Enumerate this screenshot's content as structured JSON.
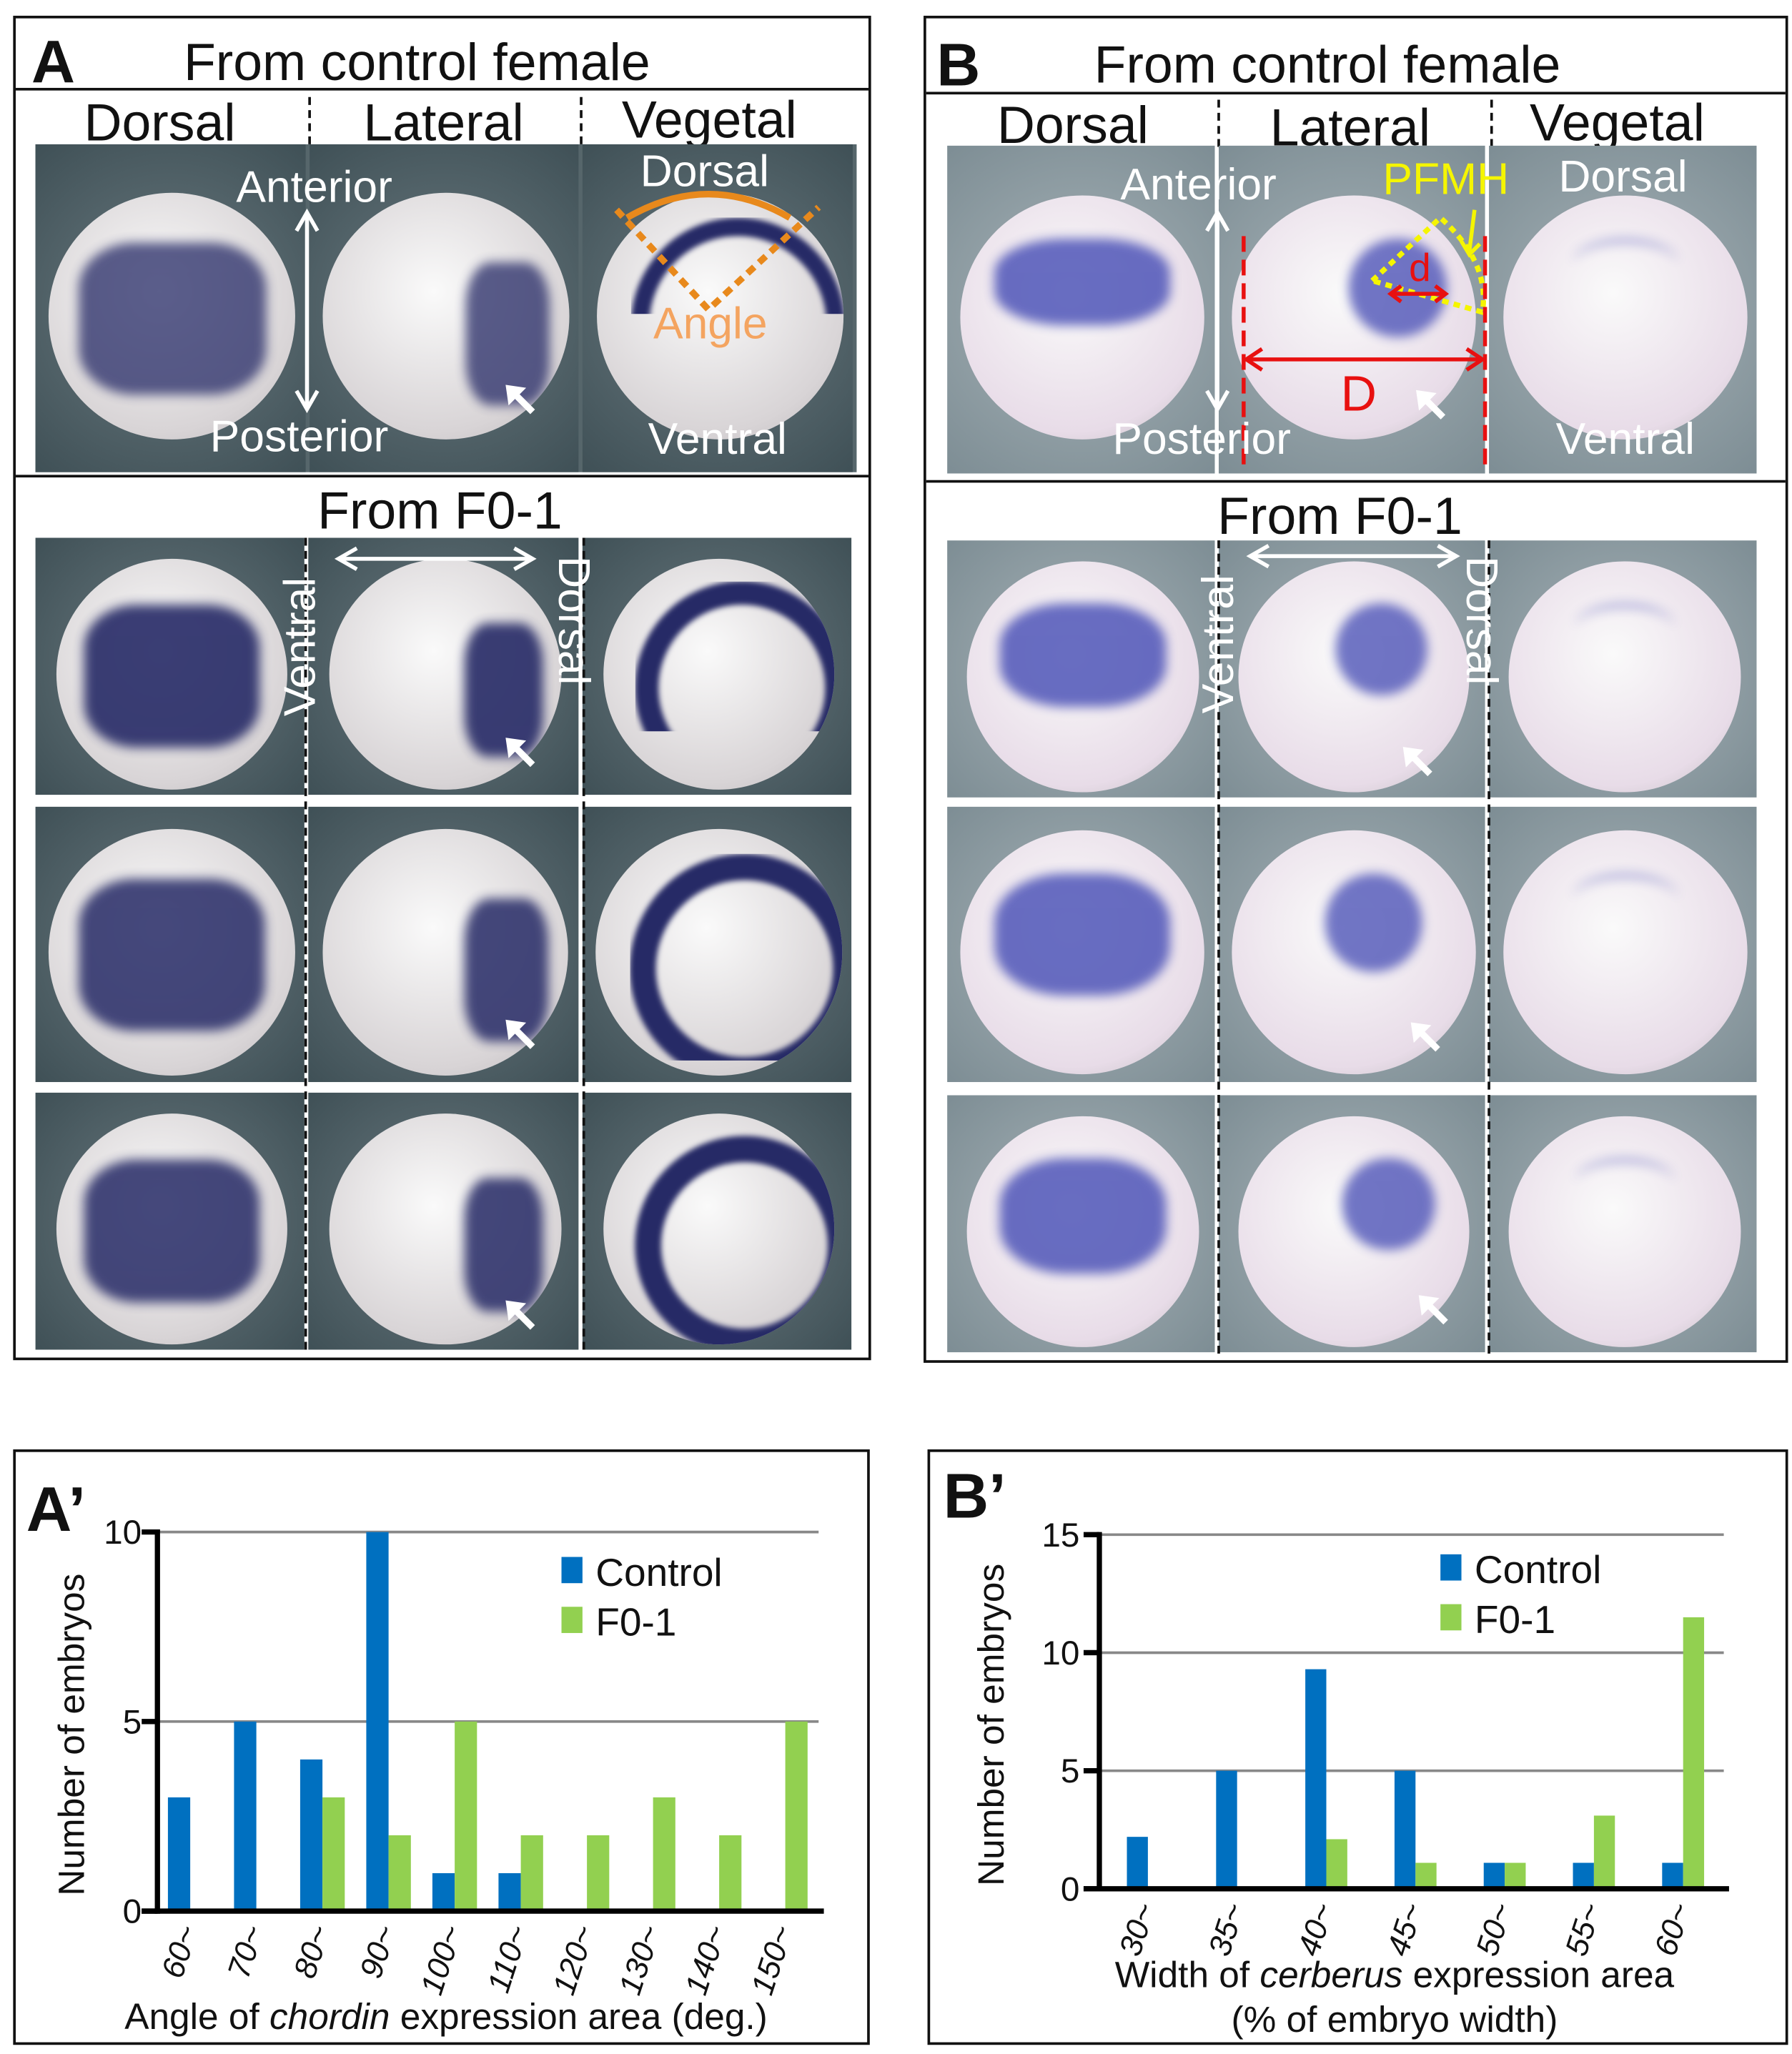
{
  "panel_a": {
    "letter": "A",
    "title": "From control female",
    "columns": [
      "Dorsal",
      "Lateral",
      "Vegetal"
    ],
    "labels": {
      "anterior": "Anterior",
      "posterior": "Posterior",
      "dorsal": "Dorsal",
      "angle": "Angle",
      "ventral": "Ventral"
    },
    "f0_title": "From F0-1",
    "f0_ventral": "Ventral",
    "f0_dorsal": "Dorsal",
    "colors": {
      "background": "#4f6066",
      "embryo": "#d9d6d8",
      "stain": "#262a66",
      "angle_marker": "#e8891c"
    }
  },
  "panel_b": {
    "letter": "B",
    "title": "From control female",
    "columns": [
      "Dorsal",
      "Lateral",
      "Vegetal"
    ],
    "labels": {
      "anterior": "Anterior",
      "posterior": "Posterior",
      "dorsal": "Dorsal",
      "ventral": "Ventral",
      "pfmh": "PFMH",
      "small_d": "d",
      "big_d": "D"
    },
    "f0_title": "From F0-1",
    "f0_ventral": "Ventral",
    "f0_dorsal": "Dorsal",
    "colors": {
      "background": "#8c9ba2",
      "embryo": "#e9dde9",
      "stain": "#4f55b8",
      "pfmh": "#f5f500",
      "measure": "#e81010"
    }
  },
  "chart_data": [
    {
      "panel_letter": "A’",
      "type": "bar",
      "categories": [
        "60~",
        "70~",
        "80~",
        "90~",
        "100~",
        "110~",
        "120~",
        "130~",
        "140~",
        "150~"
      ],
      "series": [
        {
          "name": "Control",
          "color": "#0070c0",
          "values": [
            3,
            5,
            4,
            10,
            1,
            1,
            0,
            0,
            0,
            0
          ]
        },
        {
          "name": "F0-1",
          "color": "#92d050",
          "values": [
            0,
            0,
            3,
            2,
            5,
            2,
            2,
            3,
            2,
            5
          ]
        }
      ],
      "xlabel_parts": [
        "Angle of ",
        "chordin",
        " expression area (deg.)"
      ],
      "ylabel": "Number of embryos",
      "yticks": [
        "0",
        "5",
        "10"
      ],
      "ylim": [
        0,
        10
      ],
      "grid": true,
      "legend": "top-right"
    },
    {
      "panel_letter": "B’",
      "type": "bar",
      "categories": [
        "30~",
        "35~",
        "40~",
        "45~",
        "50~",
        "55~",
        "60~"
      ],
      "series": [
        {
          "name": "Control",
          "color": "#0070c0",
          "values": [
            2.2,
            5,
            9.3,
            5,
            1.1,
            1.1,
            1.1
          ]
        },
        {
          "name": "F0-1",
          "color": "#92d050",
          "values": [
            0,
            0,
            2.1,
            1.1,
            1.1,
            3.1,
            11.5
          ]
        }
      ],
      "xlabel_parts": [
        "Width of ",
        "cerberus",
        " expression area"
      ],
      "xlabel_line2": "(% of embryo width)",
      "ylabel": "Number of embryos",
      "yticks": [
        "0",
        "5",
        "10",
        "15"
      ],
      "ylim": [
        0,
        15
      ],
      "grid": true,
      "legend": "top-right"
    }
  ]
}
